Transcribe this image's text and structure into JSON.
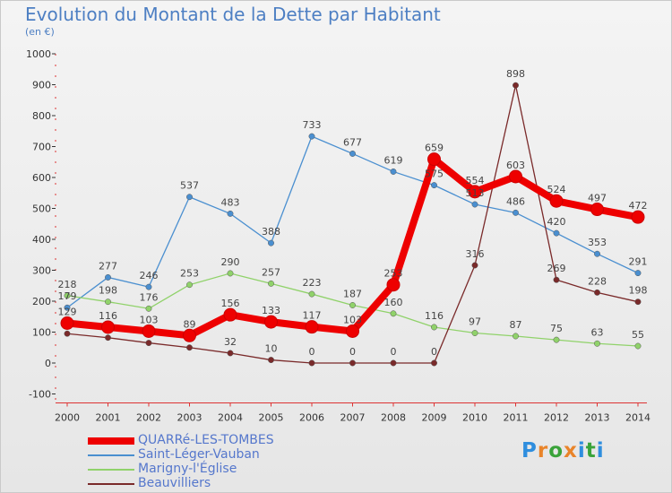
{
  "title": "Evolution du Montant de la Dette par Habitant",
  "subtitle": "(en €)",
  "logo_text": "Proxiti",
  "logo_colors": [
    "#2f8ede",
    "#e9842a",
    "#3aa33a",
    "#e9842a",
    "#2f8ede",
    "#3aa33a",
    "#2f8ede"
  ],
  "chart_data": {
    "type": "line",
    "x": [
      "2000",
      "2001",
      "2002",
      "2003",
      "2004",
      "2005",
      "2006",
      "2007",
      "2008",
      "2009",
      "2010",
      "2011",
      "2012",
      "2013",
      "2014"
    ],
    "y_ticks": [
      "-100",
      "0",
      "100",
      "200",
      "300",
      "400",
      "500",
      "600",
      "700",
      "800",
      "900",
      "1000"
    ],
    "ylim": [
      -100,
      1000
    ],
    "grid": false,
    "legend_position": "bottom-left",
    "series": [
      {
        "name": "Saint-Léger-Vauban",
        "color": "#4a8fd0",
        "values": [
          179,
          277,
          246,
          537,
          483,
          388,
          733,
          677,
          619,
          575,
          513,
          486,
          420,
          353,
          291
        ]
      },
      {
        "name": "Marigny-l'Église",
        "color": "#90d26a",
        "values": [
          218,
          198,
          176,
          253,
          290,
          257,
          223,
          187,
          160,
          116,
          97,
          87,
          75,
          63,
          55
        ]
      },
      {
        "name": "Beauvilliers",
        "color": "#7a2a2a",
        "values": [
          95,
          82,
          65,
          50,
          32,
          10,
          0,
          0,
          0,
          0,
          316,
          898,
          269,
          228,
          198
        ]
      },
      {
        "name": "QUARRé-LES-TOMBES",
        "color": "#ee0000",
        "values": [
          129,
          116,
          103,
          89,
          156,
          133,
          117,
          103,
          253,
          659,
          554,
          603,
          524,
          497,
          472
        ]
      }
    ],
    "data_labels": {
      "Saint-Léger-Vauban": [
        "179",
        "277",
        "246",
        "537",
        "483",
        "388",
        "733",
        "677",
        "619",
        "575",
        "513",
        "486",
        "420",
        "353",
        "291"
      ],
      "Marigny-l'Église": [
        "218",
        "198",
        "176",
        "253",
        "290",
        "257",
        "223",
        "187",
        "160",
        "116",
        "97",
        "87",
        "75",
        "63",
        "55"
      ],
      "Beauvilliers": [
        "",
        "",
        "",
        "",
        "32",
        "10",
        "0",
        "0",
        "0",
        "0",
        "316",
        "898",
        "269",
        "228",
        "198"
      ],
      "QUARRé-LES-TOMBES": [
        "129",
        "116",
        "103",
        "89",
        "156",
        "133",
        "117",
        "103",
        "253",
        "659",
        "554",
        "603",
        "524",
        "497",
        "472"
      ]
    },
    "legend_order": [
      "QUARRé-LES-TOMBES",
      "Saint-Léger-Vauban",
      "Marigny-l'Église",
      "Beauvilliers"
    ]
  }
}
